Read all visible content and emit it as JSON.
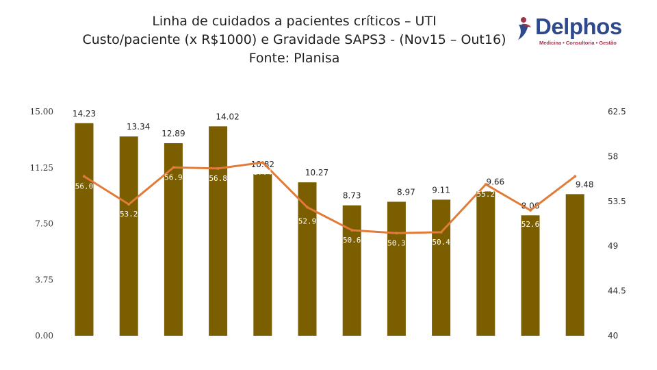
{
  "title": {
    "line1": "Linha de cuidados a pacientes críticos – UTI",
    "line2": "Custo/paciente (x R$1000) e Gravidade SAPS3 - (Nov15 – Out16)",
    "line3": "Fonte: Planisa"
  },
  "logo": {
    "name": "Delphos",
    "tagline": "Medicina • Consultoria • Gestão",
    "colors": {
      "primary": "#2e4a8c",
      "secondary": "#a0324a"
    }
  },
  "chart_data": {
    "type": "bar",
    "title": "",
    "xlabel": "",
    "ylabel": "",
    "grid": false,
    "legend": "none",
    "categories": [
      "",
      "",
      "",
      "",
      "",
      "",
      "",
      "",
      "",
      "",
      "",
      ""
    ],
    "series": [
      {
        "type": "bar",
        "axis": "left",
        "color": "#7a5e00",
        "values": [
          14.23,
          13.34,
          12.89,
          14.02,
          10.82,
          10.27,
          8.73,
          8.97,
          9.11,
          9.66,
          8.06,
          9.48
        ],
        "labels": [
          "14.23",
          "13.34",
          "12.89",
          "14.02",
          "10.82",
          "10.27",
          "8.73",
          "8.97",
          "9.11",
          "9.66",
          "8.06",
          "9.48"
        ]
      },
      {
        "type": "line",
        "axis": "right",
        "color": "#e07b39",
        "values": [
          56.0,
          53.2,
          56.9,
          56.8,
          57.4,
          52.9,
          50.6,
          50.3,
          50.4,
          55.2,
          52.6,
          56.0
        ],
        "labels": [
          "56.0",
          "53.2",
          "56.9",
          "56.8",
          "57.4",
          "52.9",
          "50.6",
          "50.3",
          "50.4",
          "55.2",
          "52.6",
          "56.0"
        ]
      }
    ],
    "y_left": {
      "ylim": [
        0,
        15
      ],
      "ticks": [
        "0.00",
        "3.75",
        "7.50",
        "11.25",
        "15.00"
      ]
    },
    "y_right": {
      "ylim": [
        40,
        62.5
      ],
      "ticks": [
        "40",
        "44.5",
        "49",
        "53.5",
        "58",
        "62.5"
      ]
    }
  }
}
